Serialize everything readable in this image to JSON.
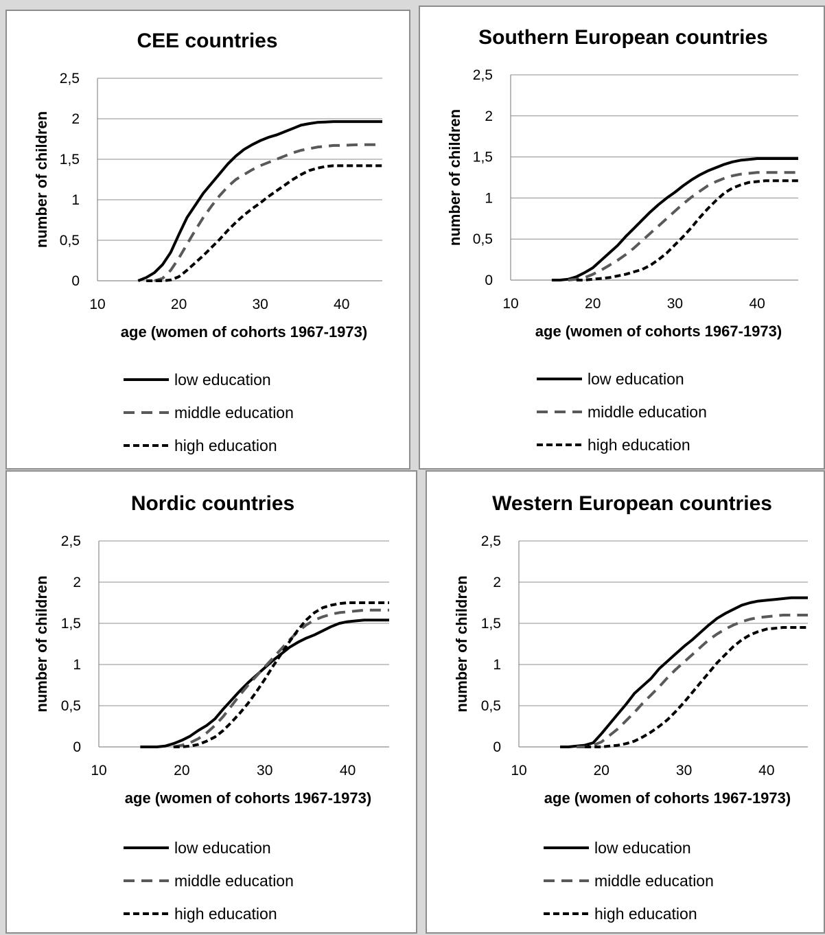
{
  "colors": {
    "low": "#000000",
    "middle": "#595959",
    "high": "#000000",
    "grid": "#8c8c8c",
    "background": "#ffffff"
  },
  "chart_data": [
    {
      "type": "line",
      "title": "CEE countries",
      "xlabel": "age (women of cohorts 1967-1973)",
      "ylabel": "number of children",
      "xlim": [
        10,
        45
      ],
      "ylim": [
        0,
        2.5
      ],
      "xticks": [
        "10",
        "20",
        "30",
        "40"
      ],
      "yticks": [
        "0",
        "0,5",
        "1",
        "1,5",
        "2",
        "2,5"
      ],
      "grid": "horizontal",
      "legend_position": "bottom",
      "series": [
        {
          "name": "low education",
          "style": "solid",
          "x": [
            15,
            16,
            17,
            18,
            19,
            20,
            21,
            22,
            23,
            24,
            25,
            26,
            27,
            28,
            29,
            30,
            31,
            32,
            33,
            34,
            35,
            36,
            37,
            38,
            39,
            40,
            41,
            42,
            43,
            44,
            45
          ],
          "y": [
            0,
            0.04,
            0.1,
            0.2,
            0.35,
            0.57,
            0.78,
            0.93,
            1.08,
            1.2,
            1.32,
            1.44,
            1.54,
            1.62,
            1.68,
            1.73,
            1.77,
            1.8,
            1.84,
            1.88,
            1.92,
            1.94,
            1.955,
            1.96,
            1.965,
            1.965,
            1.965,
            1.965,
            1.965,
            1.965,
            1.965
          ]
        },
        {
          "name": "middle education",
          "style": "dashed",
          "x": [
            17,
            18,
            19,
            20,
            21,
            22,
            23,
            24,
            25,
            26,
            27,
            28,
            29,
            30,
            31,
            32,
            33,
            34,
            35,
            36,
            37,
            38,
            39,
            40,
            41,
            42,
            43,
            44,
            45
          ],
          "y": [
            0,
            0.03,
            0.13,
            0.28,
            0.45,
            0.62,
            0.78,
            0.92,
            1.05,
            1.16,
            1.25,
            1.31,
            1.37,
            1.42,
            1.46,
            1.5,
            1.54,
            1.58,
            1.61,
            1.63,
            1.65,
            1.66,
            1.67,
            1.67,
            1.675,
            1.68,
            1.68,
            1.68,
            1.68
          ]
        },
        {
          "name": "high education",
          "style": "short-dashed",
          "x": [
            16,
            17,
            18,
            19,
            20,
            21,
            22,
            23,
            24,
            25,
            26,
            27,
            28,
            29,
            30,
            31,
            32,
            33,
            34,
            35,
            36,
            37,
            38,
            39,
            40,
            41,
            42,
            43,
            44,
            45
          ],
          "y": [
            0,
            0,
            0,
            0.01,
            0.05,
            0.13,
            0.22,
            0.31,
            0.41,
            0.51,
            0.62,
            0.72,
            0.81,
            0.89,
            0.96,
            1.04,
            1.11,
            1.18,
            1.25,
            1.31,
            1.36,
            1.39,
            1.41,
            1.42,
            1.42,
            1.42,
            1.42,
            1.42,
            1.42,
            1.42
          ]
        }
      ]
    },
    {
      "type": "line",
      "title": "Southern European countries",
      "xlabel": "age (women of cohorts 1967-1973)",
      "ylabel": "number of children",
      "xlim": [
        10,
        45
      ],
      "ylim": [
        0,
        2.5
      ],
      "xticks": [
        "10",
        "20",
        "30",
        "40"
      ],
      "yticks": [
        "0",
        "0,5",
        "1",
        "1,5",
        "2",
        "2,5"
      ],
      "grid": "horizontal",
      "legend_position": "bottom",
      "series": [
        {
          "name": "low education",
          "style": "solid",
          "x": [
            15,
            16,
            17,
            18,
            19,
            20,
            21,
            22,
            23,
            24,
            25,
            26,
            27,
            28,
            29,
            30,
            31,
            32,
            33,
            34,
            35,
            36,
            37,
            38,
            39,
            40,
            41,
            42,
            43,
            44,
            45
          ],
          "y": [
            0,
            0,
            0.01,
            0.04,
            0.09,
            0.15,
            0.24,
            0.33,
            0.42,
            0.53,
            0.63,
            0.73,
            0.83,
            0.92,
            1.0,
            1.07,
            1.15,
            1.22,
            1.28,
            1.33,
            1.37,
            1.41,
            1.44,
            1.46,
            1.47,
            1.48,
            1.48,
            1.48,
            1.48,
            1.48,
            1.48
          ]
        },
        {
          "name": "middle education",
          "style": "dashed",
          "x": [
            17,
            18,
            19,
            20,
            21,
            22,
            23,
            24,
            25,
            26,
            27,
            28,
            29,
            30,
            31,
            32,
            33,
            34,
            35,
            36,
            37,
            38,
            39,
            40,
            41,
            42,
            43,
            44,
            45
          ],
          "y": [
            0,
            0.01,
            0.03,
            0.07,
            0.12,
            0.18,
            0.24,
            0.31,
            0.39,
            0.48,
            0.57,
            0.66,
            0.75,
            0.84,
            0.93,
            1.01,
            1.08,
            1.15,
            1.2,
            1.24,
            1.27,
            1.29,
            1.3,
            1.31,
            1.31,
            1.31,
            1.31,
            1.31,
            1.31
          ]
        },
        {
          "name": "high education",
          "style": "short-dashed",
          "x": [
            18,
            19,
            20,
            21,
            22,
            23,
            24,
            25,
            26,
            27,
            28,
            29,
            30,
            31,
            32,
            33,
            34,
            35,
            36,
            37,
            38,
            39,
            40,
            41,
            42,
            43,
            44,
            45
          ],
          "y": [
            0,
            0,
            0.01,
            0.02,
            0.03,
            0.05,
            0.07,
            0.1,
            0.13,
            0.18,
            0.25,
            0.33,
            0.43,
            0.53,
            0.64,
            0.76,
            0.87,
            0.97,
            1.06,
            1.12,
            1.16,
            1.19,
            1.2,
            1.21,
            1.21,
            1.21,
            1.21,
            1.21
          ]
        }
      ]
    },
    {
      "type": "line",
      "title": "Nordic countries",
      "xlabel": "age (women of cohorts 1967-1973)",
      "ylabel": "number of children",
      "xlim": [
        10,
        45
      ],
      "ylim": [
        0,
        2.5
      ],
      "xticks": [
        "10",
        "20",
        "30",
        "40"
      ],
      "yticks": [
        "0",
        "0,5",
        "1",
        "1,5",
        "2",
        "2,5"
      ],
      "grid": "horizontal",
      "legend_position": "bottom",
      "series": [
        {
          "name": "low education",
          "style": "solid",
          "x": [
            15,
            16,
            17,
            18,
            19,
            20,
            21,
            22,
            23,
            24,
            25,
            26,
            27,
            28,
            29,
            30,
            31,
            32,
            33,
            34,
            35,
            36,
            37,
            38,
            39,
            40,
            41,
            42,
            43,
            44,
            45
          ],
          "y": [
            0,
            0,
            0,
            0.01,
            0.04,
            0.08,
            0.13,
            0.2,
            0.26,
            0.34,
            0.46,
            0.57,
            0.68,
            0.78,
            0.87,
            0.96,
            1.05,
            1.13,
            1.21,
            1.27,
            1.32,
            1.36,
            1.41,
            1.46,
            1.5,
            1.52,
            1.53,
            1.54,
            1.54,
            1.54,
            1.54
          ]
        },
        {
          "name": "middle education",
          "style": "dashed",
          "x": [
            19,
            20,
            21,
            22,
            23,
            24,
            25,
            26,
            27,
            28,
            29,
            30,
            31,
            32,
            33,
            34,
            35,
            36,
            37,
            38,
            39,
            40,
            41,
            42,
            43,
            44,
            45
          ],
          "y": [
            0,
            0.02,
            0.05,
            0.1,
            0.17,
            0.26,
            0.37,
            0.5,
            0.63,
            0.75,
            0.86,
            0.97,
            1.08,
            1.19,
            1.3,
            1.4,
            1.48,
            1.54,
            1.58,
            1.61,
            1.63,
            1.64,
            1.65,
            1.66,
            1.66,
            1.66,
            1.66
          ]
        },
        {
          "name": "high education",
          "style": "short-dashed",
          "x": [
            19,
            20,
            21,
            22,
            23,
            24,
            25,
            26,
            27,
            28,
            29,
            30,
            31,
            32,
            33,
            34,
            35,
            36,
            37,
            38,
            39,
            40,
            41,
            42,
            43,
            44,
            45
          ],
          "y": [
            0,
            0,
            0.01,
            0.03,
            0.07,
            0.12,
            0.2,
            0.3,
            0.41,
            0.53,
            0.67,
            0.82,
            0.98,
            1.13,
            1.28,
            1.42,
            1.54,
            1.63,
            1.69,
            1.72,
            1.74,
            1.75,
            1.75,
            1.75,
            1.75,
            1.75,
            1.75
          ]
        }
      ]
    },
    {
      "type": "line",
      "title": "Western European countries",
      "xlabel": "age (women of cohorts 1967-1973)",
      "ylabel": "number of children",
      "xlim": [
        10,
        45
      ],
      "ylim": [
        0,
        2.5
      ],
      "xticks": [
        "10",
        "20",
        "30",
        "40"
      ],
      "yticks": [
        "0",
        "0,5",
        "1",
        "1,5",
        "2",
        "2,5"
      ],
      "grid": "horizontal",
      "legend_position": "bottom",
      "series": [
        {
          "name": "low education",
          "style": "solid",
          "x": [
            15,
            16,
            17,
            18,
            19,
            20,
            21,
            22,
            23,
            24,
            25,
            26,
            27,
            28,
            29,
            30,
            31,
            32,
            33,
            34,
            35,
            36,
            37,
            38,
            39,
            40,
            41,
            42,
            43,
            44,
            45
          ],
          "y": [
            0,
            0,
            0.01,
            0.02,
            0.05,
            0.16,
            0.28,
            0.4,
            0.52,
            0.65,
            0.74,
            0.83,
            0.95,
            1.04,
            1.13,
            1.22,
            1.3,
            1.39,
            1.48,
            1.56,
            1.62,
            1.67,
            1.72,
            1.75,
            1.77,
            1.78,
            1.79,
            1.8,
            1.81,
            1.81,
            1.81
          ]
        },
        {
          "name": "middle education",
          "style": "dashed",
          "x": [
            17,
            18,
            19,
            20,
            21,
            22,
            23,
            24,
            25,
            26,
            27,
            28,
            29,
            30,
            31,
            32,
            33,
            34,
            35,
            36,
            37,
            38,
            39,
            40,
            41,
            42,
            43,
            44,
            45
          ],
          "y": [
            0,
            0,
            0.02,
            0.06,
            0.14,
            0.22,
            0.32,
            0.42,
            0.53,
            0.63,
            0.73,
            0.84,
            0.94,
            1.03,
            1.12,
            1.21,
            1.3,
            1.37,
            1.43,
            1.48,
            1.52,
            1.55,
            1.57,
            1.58,
            1.59,
            1.6,
            1.6,
            1.6,
            1.6
          ]
        },
        {
          "name": "high education",
          "style": "short-dashed",
          "x": [
            18,
            19,
            20,
            21,
            22,
            23,
            24,
            25,
            26,
            27,
            28,
            29,
            30,
            31,
            32,
            33,
            34,
            35,
            36,
            37,
            38,
            39,
            40,
            41,
            42,
            43,
            44,
            45
          ],
          "y": [
            0,
            0,
            0,
            0.01,
            0.02,
            0.04,
            0.07,
            0.12,
            0.18,
            0.25,
            0.33,
            0.43,
            0.54,
            0.66,
            0.78,
            0.9,
            1.02,
            1.12,
            1.22,
            1.3,
            1.36,
            1.4,
            1.43,
            1.44,
            1.45,
            1.45,
            1.45,
            1.45
          ]
        }
      ]
    }
  ]
}
